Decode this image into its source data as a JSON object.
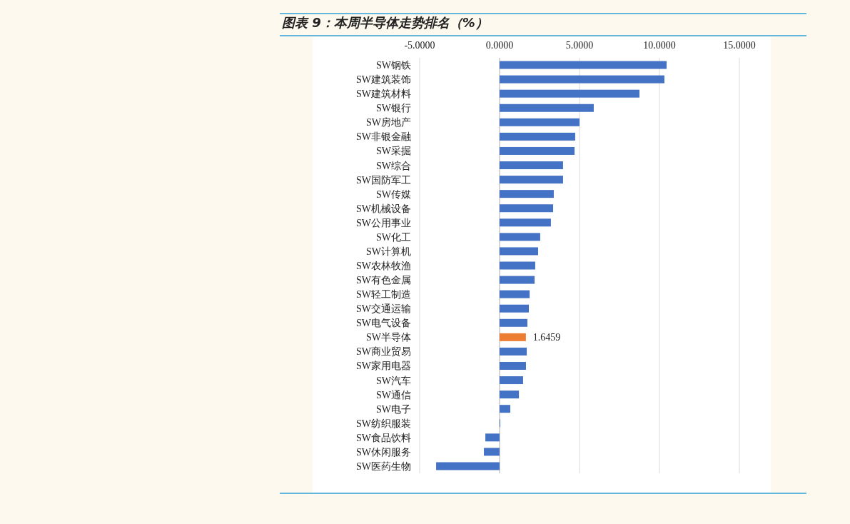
{
  "chart_data": {
    "type": "bar",
    "orientation": "horizontal",
    "title": "图表 9：本周半导体走势排名（%）",
    "categories": [
      "SW钢铁",
      "SW建筑装饰",
      "SW建筑材料",
      "SW银行",
      "SW房地产",
      "SW非银金融",
      "SW采掘",
      "SW综合",
      "SW国防军工",
      "SW传媒",
      "SW机械设备",
      "SW公用事业",
      "SW化工",
      "SW计算机",
      "SW农林牧渔",
      "SW有色金属",
      "SW轻工制造",
      "SW交通运输",
      "SW电气设备",
      "SW半导体",
      "SW商业贸易",
      "SW家用电器",
      "SW汽车",
      "SW通信",
      "SW电子",
      "SW纺织服装",
      "SW食品饮料",
      "SW休闲服务",
      "SW医药生物"
    ],
    "values": [
      10.45,
      10.31,
      8.75,
      5.89,
      5.0,
      4.73,
      4.69,
      3.97,
      3.97,
      3.39,
      3.35,
      3.21,
      2.54,
      2.41,
      2.23,
      2.19,
      1.88,
      1.83,
      1.74,
      1.6459,
      1.7,
      1.65,
      1.47,
      1.21,
      0.67,
      0.04,
      -0.89,
      -0.98,
      -3.97
    ],
    "colors": [
      "#4472c4",
      "#4472c4",
      "#4472c4",
      "#4472c4",
      "#4472c4",
      "#4472c4",
      "#4472c4",
      "#4472c4",
      "#4472c4",
      "#4472c4",
      "#4472c4",
      "#4472c4",
      "#4472c4",
      "#4472c4",
      "#4472c4",
      "#4472c4",
      "#4472c4",
      "#4472c4",
      "#4472c4",
      "#ed7d31",
      "#4472c4",
      "#4472c4",
      "#4472c4",
      "#4472c4",
      "#4472c4",
      "#4472c4",
      "#4472c4",
      "#4472c4",
      "#4472c4"
    ],
    "value_labels": [
      null,
      null,
      null,
      null,
      null,
      null,
      null,
      null,
      null,
      null,
      null,
      null,
      null,
      null,
      null,
      null,
      null,
      null,
      null,
      "1.6459",
      null,
      null,
      null,
      null,
      null,
      null,
      null,
      null,
      null
    ],
    "xlim": [
      -5,
      15
    ],
    "xticks": [
      {
        "value": -5,
        "label": "-5.0000"
      },
      {
        "value": 0,
        "label": "0.0000"
      },
      {
        "value": 5,
        "label": "5.0000"
      },
      {
        "value": 10,
        "label": "10.0000"
      },
      {
        "value": 15,
        "label": "15.0000"
      }
    ],
    "grid": "x"
  }
}
